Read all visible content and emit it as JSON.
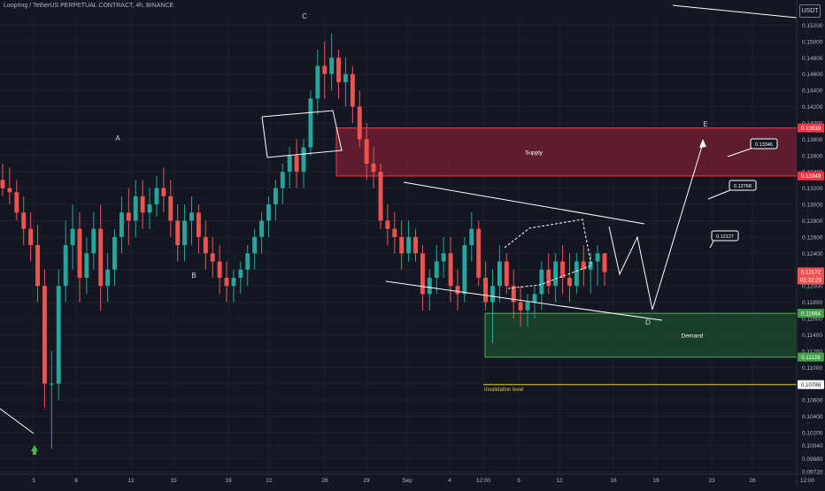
{
  "header": {
    "title": "Loopring / TetherUS PERPETUAL CONTRACT, 4h, BINANCE",
    "currency": "USDT"
  },
  "colors": {
    "background": "#131722",
    "up": "#26a69a",
    "down": "#ef5350",
    "supply_zone": "#7a1f33",
    "demand_zone": "#1b4d2e",
    "invalidation": "#e8c238",
    "annotation": "#ffffff"
  },
  "chart_data": {
    "type": "candlestick",
    "timeframe": "4h",
    "y_axis": {
      "range": [
        0.097,
        0.1527
      ],
      "ticks": [
        "0.09720",
        "0.09880",
        "0.10040",
        "0.10200",
        "0.10400",
        "0.10600",
        "0.10800",
        "0.11000",
        "0.11200",
        "0.11400",
        "0.11600",
        "0.11800",
        "0.12000",
        "0.12200",
        "0.12400",
        "0.12600",
        "0.12800",
        "0.13000",
        "0.13200",
        "0.13400",
        "0.13600",
        "0.13800",
        "0.14000",
        "0.14200",
        "0.14400",
        "0.14600",
        "0.14800",
        "0.15000",
        "0.15200"
      ]
    },
    "x_axis": {
      "ticks": [
        "5",
        "8",
        "12",
        "15",
        "19",
        "22",
        "26",
        "29",
        "Sep",
        "4",
        "12:00",
        "9",
        "12",
        "16",
        "19",
        "23",
        "26",
        "12:00"
      ]
    },
    "candles_ohlc": [
      [
        0.133,
        0.135,
        0.131,
        0.132
      ],
      [
        0.132,
        0.1345,
        0.13,
        0.1315
      ],
      [
        0.1315,
        0.133,
        0.128,
        0.129
      ],
      [
        0.129,
        0.131,
        0.125,
        0.127
      ],
      [
        0.127,
        0.129,
        0.123,
        0.125
      ],
      [
        0.125,
        0.1275,
        0.118,
        0.12
      ],
      [
        0.12,
        0.122,
        0.105,
        0.108
      ],
      [
        0.108,
        0.112,
        0.1,
        0.108
      ],
      [
        0.108,
        0.122,
        0.106,
        0.12
      ],
      [
        0.12,
        0.128,
        0.118,
        0.125
      ],
      [
        0.125,
        0.13,
        0.122,
        0.127
      ],
      [
        0.127,
        0.129,
        0.118,
        0.121
      ],
      [
        0.121,
        0.126,
        0.119,
        0.124
      ],
      [
        0.124,
        0.129,
        0.122,
        0.127
      ],
      [
        0.127,
        0.13,
        0.117,
        0.12
      ],
      [
        0.12,
        0.124,
        0.118,
        0.122
      ],
      [
        0.122,
        0.127,
        0.12,
        0.126
      ],
      [
        0.126,
        0.131,
        0.124,
        0.129
      ],
      [
        0.129,
        0.132,
        0.125,
        0.128
      ],
      [
        0.128,
        0.133,
        0.126,
        0.131
      ],
      [
        0.131,
        0.133,
        0.127,
        0.129
      ],
      [
        0.129,
        0.132,
        0.127,
        0.13
      ],
      [
        0.13,
        0.1335,
        0.1285,
        0.132
      ],
      [
        0.132,
        0.1345,
        0.129,
        0.131
      ],
      [
        0.131,
        0.133,
        0.126,
        0.128
      ],
      [
        0.128,
        0.13,
        0.123,
        0.125
      ],
      [
        0.125,
        0.13,
        0.123,
        0.128
      ],
      [
        0.128,
        0.131,
        0.125,
        0.129
      ],
      [
        0.129,
        0.13,
        0.124,
        0.126
      ],
      [
        0.126,
        0.128,
        0.122,
        0.124
      ],
      [
        0.124,
        0.126,
        0.121,
        0.123
      ],
      [
        0.123,
        0.125,
        0.119,
        0.121
      ],
      [
        0.121,
        0.123,
        0.118,
        0.12
      ],
      [
        0.12,
        0.122,
        0.118,
        0.121
      ],
      [
        0.121,
        0.123,
        0.119,
        0.122
      ],
      [
        0.122,
        0.125,
        0.12,
        0.124
      ],
      [
        0.124,
        0.127,
        0.122,
        0.126
      ],
      [
        0.126,
        0.129,
        0.124,
        0.128
      ],
      [
        0.128,
        0.131,
        0.126,
        0.13
      ],
      [
        0.13,
        0.133,
        0.128,
        0.132
      ],
      [
        0.132,
        0.135,
        0.13,
        0.134
      ],
      [
        0.134,
        0.137,
        0.132,
        0.136
      ],
      [
        0.136,
        0.138,
        0.132,
        0.134
      ],
      [
        0.134,
        0.138,
        0.132,
        0.137
      ],
      [
        0.137,
        0.144,
        0.136,
        0.143
      ],
      [
        0.143,
        0.149,
        0.141,
        0.147
      ],
      [
        0.147,
        0.15,
        0.143,
        0.146
      ],
      [
        0.146,
        0.151,
        0.144,
        0.148
      ],
      [
        0.148,
        0.149,
        0.143,
        0.145
      ],
      [
        0.145,
        0.148,
        0.142,
        0.146
      ],
      [
        0.146,
        0.147,
        0.14,
        0.142
      ],
      [
        0.142,
        0.144,
        0.137,
        0.138
      ],
      [
        0.138,
        0.14,
        0.133,
        0.135
      ],
      [
        0.135,
        0.137,
        0.132,
        0.134
      ],
      [
        0.134,
        0.135,
        0.127,
        0.128
      ],
      [
        0.128,
        0.13,
        0.125,
        0.127
      ],
      [
        0.127,
        0.129,
        0.124,
        0.126
      ],
      [
        0.126,
        0.128,
        0.122,
        0.124
      ],
      [
        0.124,
        0.128,
        0.123,
        0.126
      ],
      [
        0.126,
        0.127,
        0.123,
        0.124
      ],
      [
        0.124,
        0.125,
        0.117,
        0.119
      ],
      [
        0.119,
        0.122,
        0.117,
        0.121
      ],
      [
        0.121,
        0.125,
        0.119,
        0.123
      ],
      [
        0.123,
        0.126,
        0.121,
        0.124
      ],
      [
        0.124,
        0.126,
        0.118,
        0.12
      ],
      [
        0.12,
        0.122,
        0.117,
        0.119
      ],
      [
        0.119,
        0.126,
        0.118,
        0.125
      ],
      [
        0.125,
        0.129,
        0.123,
        0.127
      ],
      [
        0.127,
        0.128,
        0.12,
        0.121
      ],
      [
        0.121,
        0.123,
        0.117,
        0.118
      ],
      [
        0.118,
        0.122,
        0.113,
        0.12
      ],
      [
        0.12,
        0.125,
        0.118,
        0.123
      ],
      [
        0.123,
        0.124,
        0.119,
        0.12
      ],
      [
        0.12,
        0.122,
        0.116,
        0.118
      ],
      [
        0.118,
        0.12,
        0.115,
        0.117
      ],
      [
        0.117,
        0.119,
        0.115,
        0.118
      ],
      [
        0.118,
        0.12,
        0.116,
        0.119
      ],
      [
        0.119,
        0.123,
        0.117,
        0.122
      ],
      [
        0.122,
        0.124,
        0.119,
        0.12
      ],
      [
        0.12,
        0.124,
        0.118,
        0.123
      ],
      [
        0.123,
        0.125,
        0.119,
        0.121
      ],
      [
        0.121,
        0.124,
        0.118,
        0.12
      ],
      [
        0.12,
        0.124,
        0.119,
        0.123
      ],
      [
        0.123,
        0.125,
        0.12,
        0.122
      ],
      [
        0.122,
        0.124,
        0.119,
        0.123
      ],
      [
        0.123,
        0.125,
        0.12,
        0.124
      ],
      [
        0.124,
        0.124,
        0.12,
        0.1217
      ]
    ],
    "waves": [
      "A",
      "B",
      "C",
      "D",
      "E"
    ],
    "zones": [
      {
        "label": "Supply",
        "from": 0.13349,
        "to": 0.13939
      },
      {
        "label": "Demand",
        "from": 0.11126,
        "to": 0.11664
      }
    ],
    "levels": [
      {
        "label": "Invalidation level",
        "value": 0.10788
      }
    ],
    "targets": [
      0.13346,
      0.12768,
      0.12127
    ],
    "price_labels": [
      {
        "value": "0.13939",
        "kind": "supply"
      },
      {
        "value": "0.13349",
        "kind": "supply"
      },
      {
        "value": "0.12172",
        "kind": "last"
      },
      {
        "value": "01:32:25",
        "kind": "countdown"
      },
      {
        "value": "0.11664",
        "kind": "demand"
      },
      {
        "value": "0.11126",
        "kind": "demand"
      },
      {
        "value": "0.10788",
        "kind": "invalidation"
      }
    ]
  }
}
